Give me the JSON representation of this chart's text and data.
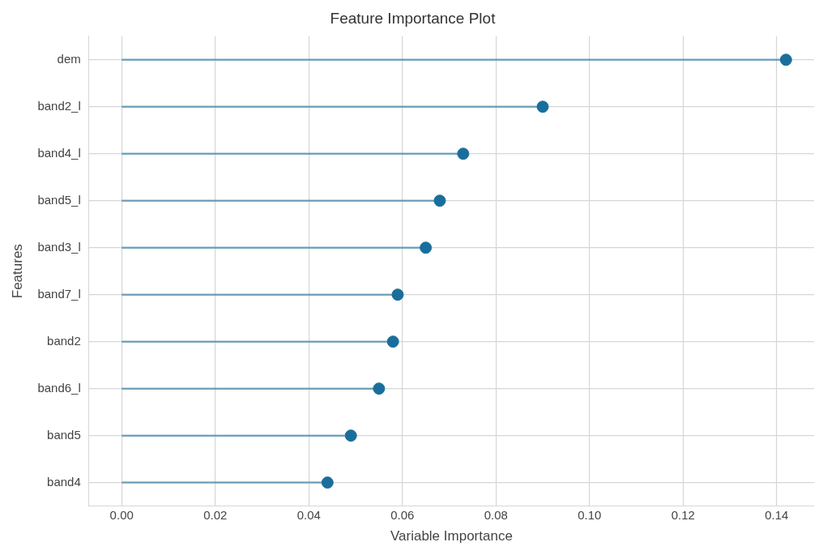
{
  "chart_data": {
    "type": "lollipop",
    "orientation": "horizontal",
    "title": "Feature Importance Plot",
    "xlabel": "Variable Importance",
    "ylabel": "Features",
    "categories": [
      "dem",
      "band2_l",
      "band4_l",
      "band5_l",
      "band3_l",
      "band7_l",
      "band2",
      "band6_l",
      "band5",
      "band4"
    ],
    "series": [
      {
        "color": "#1a6e9b",
        "values": [
          0.142,
          0.09,
          0.073,
          0.068,
          0.065,
          0.059,
          0.058,
          0.055,
          0.049,
          0.044
        ]
      }
    ],
    "xlim": [
      -0.007,
      0.148
    ],
    "xticks": [
      {
        "value": 0,
        "label": "0.00"
      },
      {
        "value": 0.02,
        "label": "0.02"
      },
      {
        "value": 0.04,
        "label": "0.04"
      },
      {
        "value": 0.06,
        "label": "0.06"
      },
      {
        "value": 0.08,
        "label": "0.08"
      },
      {
        "value": 0.1,
        "label": "0.10"
      },
      {
        "value": 0.12,
        "label": "0.12"
      },
      {
        "value": 0.14,
        "label": "0.14"
      }
    ],
    "grid": true,
    "marker": "circle",
    "legend": false
  }
}
